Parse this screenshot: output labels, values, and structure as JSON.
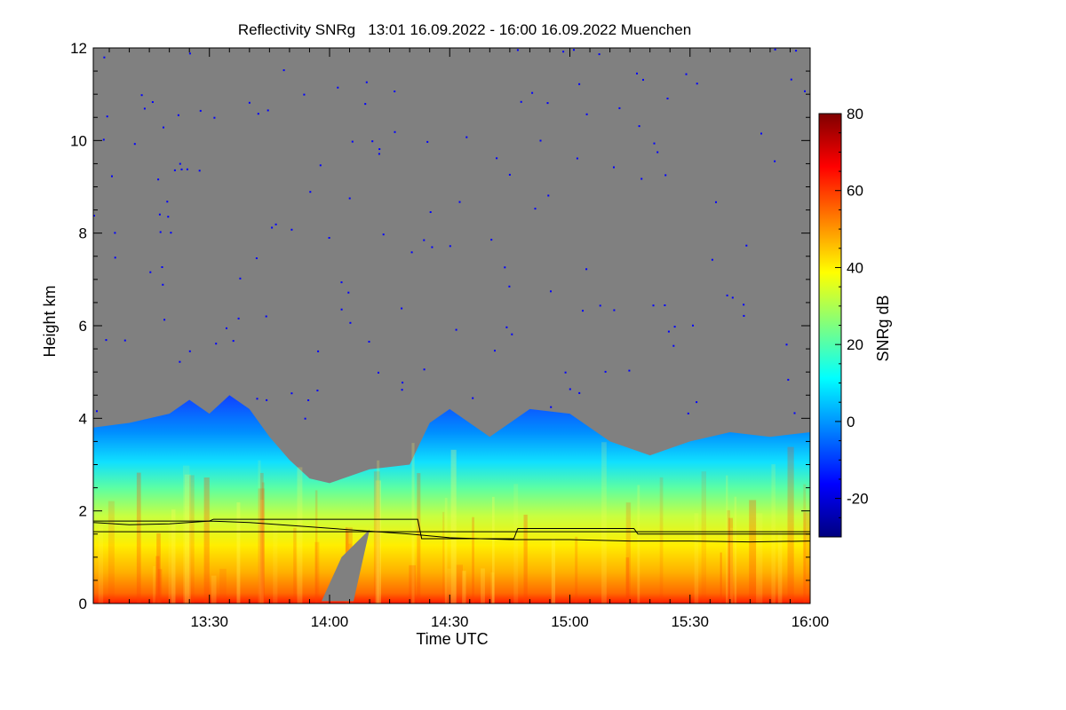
{
  "chart_data": {
    "type": "heatmap",
    "title": "Reflectivity SNRg   13:01 16.09.2022 - 16:00 16.09.2022 Muenchen",
    "xlabel": "Time UTC",
    "ylabel": "Height km",
    "x_range": [
      "13:01",
      "16:00"
    ],
    "ylim": [
      0,
      12
    ],
    "x_ticks": [
      "13:30",
      "14:00",
      "14:30",
      "15:00",
      "15:30",
      "16:00"
    ],
    "y_ticks": [
      "0",
      "2",
      "4",
      "6",
      "8",
      "10",
      "12"
    ],
    "colorbar": {
      "label": "SNRg dB",
      "range": [
        -30,
        80
      ],
      "ticks": [
        "-20",
        "0",
        "20",
        "40",
        "60",
        "80"
      ]
    },
    "colors": {
      "no_signal": "#808080",
      "colormap": [
        "#00007f",
        "#0000ff",
        "#007fff",
        "#00ffff",
        "#7fff7f",
        "#ffff00",
        "#ff7f00",
        "#ff0000",
        "#7f0000"
      ]
    },
    "echo_top_km": [
      [
        "13:01",
        3.8
      ],
      [
        "13:10",
        3.9
      ],
      [
        "13:20",
        4.1
      ],
      [
        "13:25",
        4.4
      ],
      [
        "13:30",
        4.1
      ],
      [
        "13:35",
        4.5
      ],
      [
        "13:40",
        4.2
      ],
      [
        "13:45",
        3.6
      ],
      [
        "13:50",
        3.1
      ],
      [
        "13:55",
        2.7
      ],
      [
        "14:00",
        2.6
      ],
      [
        "14:10",
        2.9
      ],
      [
        "14:20",
        3.0
      ],
      [
        "14:25",
        3.9
      ],
      [
        "14:30",
        4.2
      ],
      [
        "14:40",
        3.6
      ],
      [
        "14:50",
        4.2
      ],
      [
        "15:00",
        4.1
      ],
      [
        "15:10",
        3.5
      ],
      [
        "15:20",
        3.2
      ],
      [
        "15:30",
        3.5
      ],
      [
        "15:40",
        3.7
      ],
      [
        "15:50",
        3.6
      ],
      [
        "16:00",
        3.7
      ]
    ],
    "bright_band_km": [
      [
        "13:01",
        1.75
      ],
      [
        "13:10",
        1.7
      ],
      [
        "13:20",
        1.72
      ],
      [
        "13:30",
        1.78
      ],
      [
        "13:40",
        1.75
      ],
      [
        "14:20",
        1.5
      ],
      [
        "14:30",
        1.42
      ],
      [
        "14:45",
        1.38
      ],
      [
        "15:00",
        1.38
      ],
      [
        "15:15",
        1.35
      ],
      [
        "15:30",
        1.35
      ],
      [
        "15:45",
        1.33
      ],
      [
        "16:00",
        1.35
      ]
    ],
    "step_line_km": [
      [
        "13:01",
        1.78
      ],
      [
        "13:30",
        1.78
      ],
      [
        "13:31",
        1.82
      ],
      [
        "14:22",
        1.82
      ],
      [
        "14:23",
        1.4
      ],
      [
        "14:46",
        1.4
      ],
      [
        "14:47",
        1.62
      ],
      [
        "15:16",
        1.62
      ],
      [
        "15:17",
        1.5
      ],
      [
        "16:00",
        1.5
      ]
    ],
    "reference_line_km": 1.55,
    "legend": "none"
  }
}
